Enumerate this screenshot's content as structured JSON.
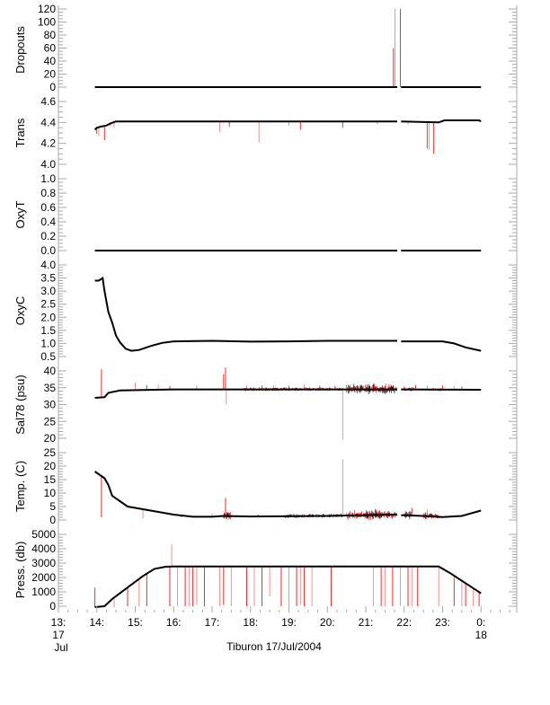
{
  "chart_data": {
    "type": "line",
    "title": "",
    "xlabel": "Tiburon 17/Jul/2004",
    "xlim": [
      13,
      24.93
    ],
    "x_ticks": [
      {
        "value": 13,
        "label": "13:",
        "sub1": "17",
        "sub2": "Jul"
      },
      {
        "value": 14,
        "label": "14:"
      },
      {
        "value": 15,
        "label": "15:"
      },
      {
        "value": 16,
        "label": "16:"
      },
      {
        "value": 17,
        "label": "17:"
      },
      {
        "value": 18,
        "label": "18:"
      },
      {
        "value": 19,
        "label": "19:"
      },
      {
        "value": 20,
        "label": "20:"
      },
      {
        "value": 21,
        "label": "21:"
      },
      {
        "value": 22,
        "label": "22:"
      },
      {
        "value": 23,
        "label": "23:"
      },
      {
        "value": 24,
        "label": "0:",
        "sub1": "18"
      }
    ],
    "colors": {
      "line": "#000000",
      "flagged": "#ff0000",
      "axis": "#aaaaaa"
    },
    "panels": [
      {
        "ylabel": "Dropouts",
        "ylim": [
          0,
          120
        ],
        "major": 20,
        "minor": 5,
        "tick_labels": [
          "0",
          "20",
          "40",
          "60",
          "80",
          "100",
          "120"
        ],
        "line": [
          [
            13.95,
            0
          ],
          [
            21.82,
            0
          ],
          null,
          [
            21.92,
            0
          ],
          [
            24.0,
            0
          ]
        ],
        "spikes": [
          [
            21.72,
            60
          ],
          [
            21.76,
            120
          ],
          [
            21.9,
            120
          ]
        ],
        "noise": []
      },
      {
        "ylabel": "Trans",
        "ylim": [
          4.0,
          4.6
        ],
        "major": 0.2,
        "minor": 0.05,
        "tick_labels": [
          "4.0",
          "4.2",
          "4.4",
          "4.6"
        ],
        "line": [
          [
            13.95,
            4.33
          ],
          [
            14.0,
            4.35
          ],
          [
            14.1,
            4.36
          ],
          [
            14.25,
            4.37
          ],
          [
            14.35,
            4.39
          ],
          [
            14.5,
            4.41
          ],
          [
            21.82,
            4.41
          ],
          null,
          [
            21.92,
            4.41
          ],
          [
            22.9,
            4.4
          ],
          [
            23.05,
            4.42
          ],
          [
            23.95,
            4.42
          ],
          [
            24.0,
            4.41
          ]
        ],
        "spikes": [
          [
            14.0,
            4.29
          ],
          [
            14.05,
            4.27
          ],
          [
            14.2,
            4.23
          ],
          [
            14.45,
            4.35
          ],
          [
            14.35,
            4.37
          ],
          [
            17.2,
            4.31
          ],
          [
            17.45,
            4.36
          ],
          [
            18.22,
            4.21
          ],
          [
            19.3,
            4.33
          ],
          [
            19.0,
            4.37
          ],
          [
            20.4,
            4.35
          ],
          [
            21.3,
            4.38
          ],
          [
            22.6,
            4.15
          ],
          [
            22.65,
            4.14
          ],
          [
            22.77,
            4.1
          ],
          [
            22.1,
            4.38
          ]
        ],
        "noise": []
      },
      {
        "ylabel": "OxyT",
        "ylim": [
          0,
          1.0
        ],
        "major": 0.2,
        "minor": 0.05,
        "tick_labels": [
          "0.0",
          "0.2",
          "0.4",
          "0.6",
          "0.8",
          "1.0"
        ],
        "line": [
          [
            13.95,
            0
          ],
          [
            21.82,
            0
          ],
          null,
          [
            21.92,
            0
          ],
          [
            24.0,
            0
          ]
        ],
        "spikes": [],
        "noise": []
      },
      {
        "ylabel": "OxyC",
        "ylim": [
          0.5,
          4.0
        ],
        "major": 0.5,
        "minor": 0.1,
        "tick_labels": [
          "0.5",
          "1.0",
          "1.5",
          "2.0",
          "2.5",
          "3.0",
          "3.5",
          "4.0"
        ],
        "line": [
          [
            13.95,
            3.4
          ],
          [
            14.05,
            3.4
          ],
          [
            14.15,
            3.5
          ],
          [
            14.2,
            3.0
          ],
          [
            14.3,
            2.2
          ],
          [
            14.4,
            1.8
          ],
          [
            14.5,
            1.3
          ],
          [
            14.6,
            1.05
          ],
          [
            14.75,
            0.8
          ],
          [
            14.9,
            0.72
          ],
          [
            15.1,
            0.75
          ],
          [
            15.4,
            0.9
          ],
          [
            15.7,
            1.02
          ],
          [
            16.0,
            1.08
          ],
          [
            17.0,
            1.1
          ],
          [
            18.0,
            1.07
          ],
          [
            19.0,
            1.08
          ],
          [
            20.0,
            1.1
          ],
          [
            21.82,
            1.1
          ],
          null,
          [
            21.92,
            1.08
          ],
          [
            23.0,
            1.08
          ],
          [
            23.3,
            1.0
          ],
          [
            23.6,
            0.85
          ],
          [
            24.0,
            0.72
          ]
        ],
        "spikes": [],
        "noise": []
      },
      {
        "ylabel": "Sal78 (psu)",
        "ylim": [
          20,
          40
        ],
        "major": 5,
        "minor": 1,
        "tick_labels": [
          "20",
          "25",
          "30",
          "35",
          "40"
        ],
        "line": [
          [
            13.95,
            32.0
          ],
          [
            14.2,
            32.2
          ],
          [
            14.3,
            33.5
          ],
          [
            14.6,
            34.2
          ],
          [
            15.5,
            34.4
          ],
          [
            16.0,
            34.5
          ],
          [
            21.82,
            34.5
          ],
          null,
          [
            21.92,
            34.5
          ],
          [
            24.0,
            34.4
          ]
        ],
        "spikes": [
          [
            14.12,
            40.5
          ],
          [
            15.0,
            36.5
          ],
          [
            15.3,
            35.8
          ],
          [
            15.6,
            35.9
          ],
          [
            15.9,
            35.5
          ],
          [
            16.6,
            35.6
          ],
          [
            17.35,
            41
          ],
          [
            17.37,
            30
          ],
          [
            17.3,
            39
          ],
          [
            17.9,
            35.7
          ],
          [
            18.3,
            35.7
          ],
          [
            18.6,
            35.8
          ],
          [
            19.0,
            35.6
          ],
          [
            19.4,
            36.0
          ],
          [
            19.8,
            35.6
          ],
          [
            20.4,
            19.5
          ],
          [
            20.2,
            35.5
          ],
          [
            22.0,
            35.6
          ],
          [
            22.3,
            35.8
          ],
          [
            22.6,
            35.7
          ],
          [
            23.0,
            35.7
          ],
          [
            23.3,
            35.5
          ],
          [
            23.5,
            35.3
          ]
        ],
        "noise": [
          [
            17.8,
            20.4,
            0.7
          ],
          [
            20.5,
            21.8,
            2.0
          ],
          [
            21.95,
            22.3,
            0.8
          ],
          [
            22.6,
            23.0,
            0.7
          ]
        ]
      },
      {
        "ylabel": "Temp. (C)",
        "ylim": [
          0,
          25
        ],
        "major": 5,
        "minor": 1,
        "tick_labels": [
          "0",
          "5",
          "10",
          "15",
          "20",
          "25"
        ],
        "line": [
          [
            13.95,
            18
          ],
          [
            14.05,
            17
          ],
          [
            14.2,
            15.5
          ],
          [
            14.3,
            13
          ],
          [
            14.4,
            9
          ],
          [
            14.6,
            7
          ],
          [
            14.8,
            5
          ],
          [
            15.2,
            4
          ],
          [
            15.6,
            3
          ],
          [
            16.0,
            2
          ],
          [
            16.5,
            1.2
          ],
          [
            17.0,
            1.2
          ],
          [
            17.3,
            1.5
          ],
          [
            18.0,
            1.3
          ],
          [
            20.0,
            1.5
          ],
          [
            21.82,
            2.0
          ],
          null,
          [
            21.92,
            1.8
          ],
          [
            22.5,
            1.5
          ],
          [
            23.0,
            1.1
          ],
          [
            23.5,
            1.5
          ],
          [
            24.0,
            3.5
          ]
        ],
        "spikes": [
          [
            14.12,
            1.0
          ],
          [
            15.2,
            0.5
          ],
          [
            17.35,
            8.2
          ],
          [
            17.0,
            2.5
          ],
          [
            18.2,
            2.0
          ],
          [
            20.4,
            22.5
          ],
          [
            22.2,
            4.5
          ],
          [
            22.6,
            4.0
          ],
          [
            16.2,
            1.0
          ]
        ],
        "noise": [
          [
            17.3,
            17.5,
            2.5
          ],
          [
            18.9,
            20.4,
            1.0
          ],
          [
            20.5,
            21.8,
            2.5
          ],
          [
            22.0,
            22.2,
            2.0
          ],
          [
            22.5,
            22.9,
            1.5
          ]
        ]
      },
      {
        "ylabel": "Press. (db)",
        "ylim": [
          0,
          5000
        ],
        "major": 1000,
        "minor": 200,
        "tick_labels": [
          "0",
          "1000",
          "2000",
          "3000",
          "4000",
          "5000"
        ],
        "line": [
          [
            13.95,
            -60
          ],
          [
            14.2,
            0
          ],
          [
            14.4,
            500
          ],
          [
            14.8,
            1300
          ],
          [
            15.2,
            2100
          ],
          [
            15.5,
            2600
          ],
          [
            15.8,
            2750
          ],
          [
            16.0,
            2760
          ],
          [
            22.9,
            2760
          ],
          [
            23.2,
            2300
          ],
          [
            23.6,
            1600
          ],
          [
            24.0,
            900
          ]
        ],
        "spikes": [
          [
            13.95,
            1300
          ],
          [
            14.45,
            -100
          ],
          [
            14.8,
            0
          ],
          [
            15.1,
            0
          ],
          [
            15.3,
            0
          ],
          [
            15.95,
            4300
          ],
          [
            15.9,
            0
          ],
          [
            16.1,
            0
          ],
          [
            16.3,
            0
          ],
          [
            16.4,
            0
          ],
          [
            16.5,
            0
          ],
          [
            16.6,
            100
          ],
          [
            16.8,
            0
          ],
          [
            17.2,
            0
          ],
          [
            17.3,
            100
          ],
          [
            17.5,
            0
          ],
          [
            17.9,
            0
          ],
          [
            18.1,
            0
          ],
          [
            18.3,
            0
          ],
          [
            18.5,
            700
          ],
          [
            18.8,
            0
          ],
          [
            19.0,
            0
          ],
          [
            19.2,
            0
          ],
          [
            19.3,
            100
          ],
          [
            19.4,
            0
          ],
          [
            19.6,
            0
          ],
          [
            20.1,
            0
          ],
          [
            21.2,
            0
          ],
          [
            21.4,
            0
          ],
          [
            21.5,
            0
          ],
          [
            21.7,
            0
          ],
          [
            21.9,
            0
          ],
          [
            22.1,
            0
          ],
          [
            22.2,
            0
          ],
          [
            22.35,
            0
          ],
          [
            22.9,
            0
          ],
          [
            23.3,
            0
          ],
          [
            23.5,
            0
          ],
          [
            23.6,
            0
          ],
          [
            23.8,
            0
          ],
          [
            23.95,
            0
          ]
        ],
        "noise": []
      }
    ]
  }
}
